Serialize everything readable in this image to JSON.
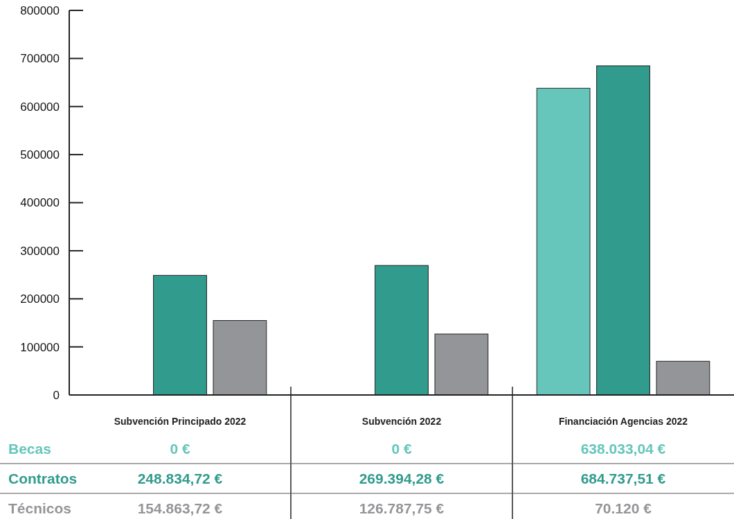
{
  "chart_data": {
    "type": "bar",
    "categories": [
      "Subvención Principado 2022",
      "Subvención 2022",
      "Financiación Agencias 2022"
    ],
    "series": [
      {
        "name": "Becas",
        "color": "#66c6bb",
        "values": [
          0,
          0,
          638033.04
        ],
        "value_labels": [
          "0 €",
          "0 €",
          "638.033,04 €"
        ]
      },
      {
        "name": "Contratos",
        "color": "#319b8d",
        "values": [
          248834.72,
          269394.28,
          684737.51
        ],
        "value_labels": [
          "248.834,72 €",
          "269.394,28 €",
          "684.737,51 €"
        ]
      },
      {
        "name": "Técnicos",
        "color": "#949598",
        "values": [
          154863.72,
          126787.75,
          70120
        ],
        "value_labels": [
          "154.863,72 €",
          "126.787,75 €",
          "70.120 €"
        ]
      }
    ],
    "ylim": [
      0,
      800000
    ],
    "yticks": [
      0,
      100000,
      200000,
      300000,
      400000,
      500000,
      600000,
      700000,
      800000
    ],
    "grid": false
  }
}
